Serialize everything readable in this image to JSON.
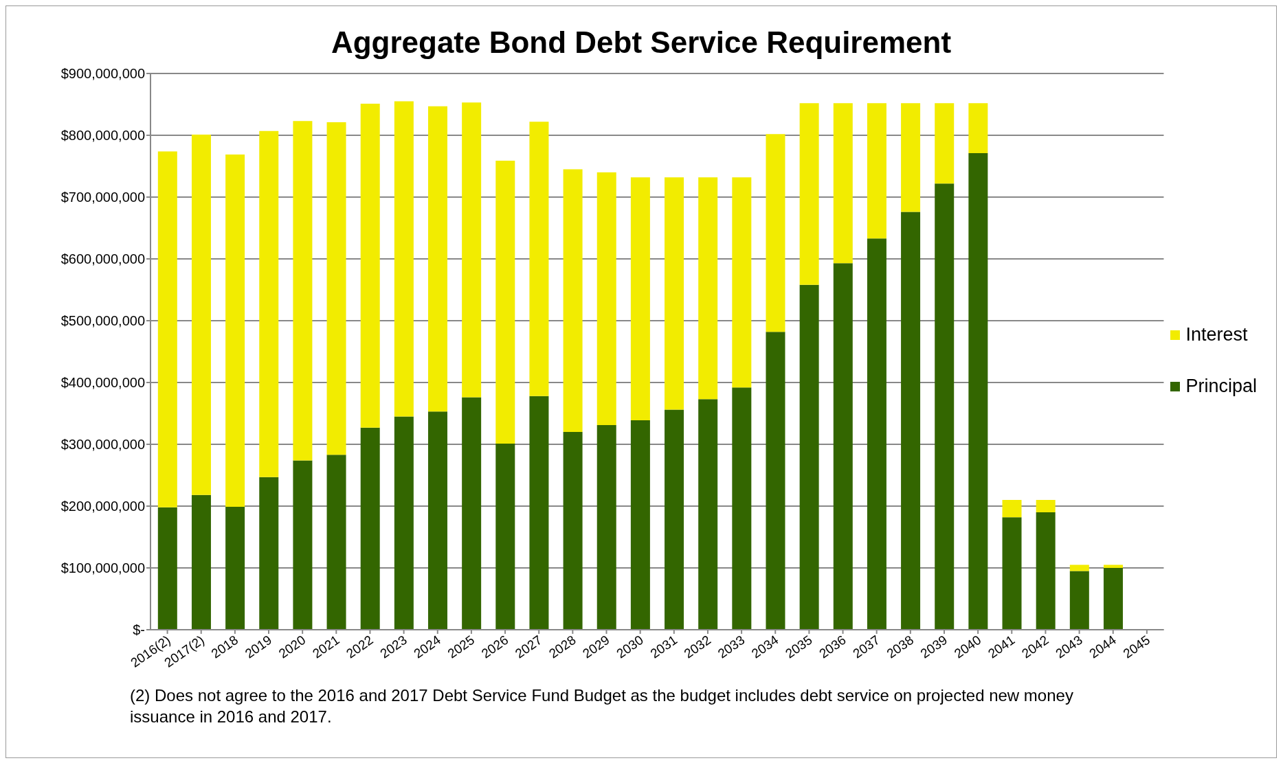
{
  "chart_data": {
    "type": "bar",
    "title": "Aggregate Bond Debt Service Requirement",
    "categories": [
      "2016(2)",
      "2017(2)",
      "2018",
      "2019",
      "2020",
      "2021",
      "2022",
      "2023",
      "2024",
      "2025",
      "2026",
      "2027",
      "2028",
      "2029",
      "2030",
      "2031",
      "2032",
      "2033",
      "2034",
      "2035",
      "2036",
      "2037",
      "2038",
      "2039",
      "2040",
      "2041",
      "2042",
      "2043",
      "2044",
      "2045"
    ],
    "stacked": true,
    "series": [
      {
        "name": "Principal",
        "color": "#336600",
        "values": [
          198000000,
          218000000,
          199000000,
          247000000,
          274000000,
          283000000,
          327000000,
          345000000,
          353000000,
          376000000,
          301000000,
          378000000,
          320000000,
          331000000,
          339000000,
          356000000,
          373000000,
          392000000,
          482000000,
          558000000,
          593000000,
          633000000,
          676000000,
          722000000,
          771000000,
          182000000,
          190000000,
          95000000,
          100000000,
          null
        ]
      },
      {
        "name": "Interest",
        "color": "#f2ec00",
        "values": [
          576000000,
          583000000,
          570000000,
          560000000,
          549000000,
          538000000,
          524000000,
          510000000,
          494000000,
          477000000,
          458000000,
          444000000,
          425000000,
          409000000,
          393000000,
          376000000,
          359000000,
          340000000,
          320000000,
          294000000,
          259000000,
          219000000,
          176000000,
          130000000,
          81000000,
          28000000,
          20000000,
          10000000,
          5000000,
          null
        ]
      }
    ],
    "ylim": [
      0,
      900000000
    ],
    "yticks": [
      {
        "value": 0,
        "label": "$-"
      },
      {
        "value": 100000000,
        "label": "$100,000,000"
      },
      {
        "value": 200000000,
        "label": "$200,000,000"
      },
      {
        "value": 300000000,
        "label": "$300,000,000"
      },
      {
        "value": 400000000,
        "label": "$400,000,000"
      },
      {
        "value": 500000000,
        "label": "$500,000,000"
      },
      {
        "value": 600000000,
        "label": "$600,000,000"
      },
      {
        "value": 700000000,
        "label": "$700,000,000"
      },
      {
        "value": 800000000,
        "label": "$800,000,000"
      },
      {
        "value": 900000000,
        "label": "$900,000,000"
      }
    ],
    "grid": "y",
    "legend": "right",
    "annotations": [
      "(2) Does not agree to the 2016 and 2017 Debt Service Fund Budget as the budget includes debt service on projected new money issuance in 2016 and 2017."
    ]
  }
}
